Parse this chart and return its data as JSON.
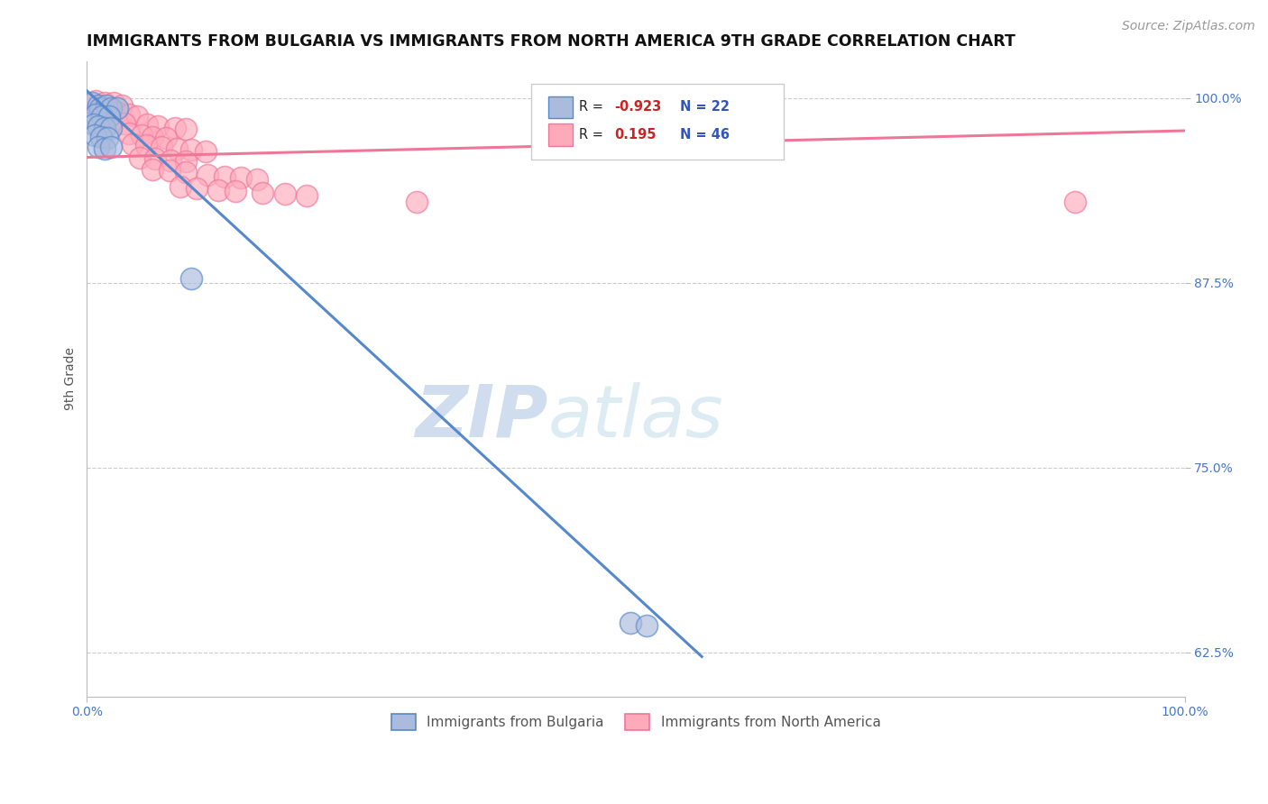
{
  "title": "IMMIGRANTS FROM BULGARIA VS IMMIGRANTS FROM NORTH AMERICA 9TH GRADE CORRELATION CHART",
  "source_text": "Source: ZipAtlas.com",
  "ylabel": "9th Grade",
  "xlim": [
    0.0,
    1.0
  ],
  "ylim": [
    0.595,
    1.025
  ],
  "ytick_vals": [
    0.625,
    0.75,
    0.875,
    1.0
  ],
  "ytick_labels": [
    "62.5%",
    "75.0%",
    "87.5%",
    "100.0%"
  ],
  "xtick_vals": [
    0.0,
    1.0
  ],
  "xtick_labels": [
    "0.0%",
    "100.0%"
  ],
  "blue_color": "#5588cc",
  "pink_color": "#ee7799",
  "blue_fill": "#aabbdd",
  "pink_fill": "#ffaabb",
  "watermark_zip": "ZIP",
  "watermark_atlas": "atlas",
  "blue_scatter": [
    [
      0.005,
      0.997
    ],
    [
      0.01,
      0.995
    ],
    [
      0.012,
      0.993
    ],
    [
      0.018,
      0.995
    ],
    [
      0.022,
      0.993
    ],
    [
      0.028,
      0.993
    ],
    [
      0.008,
      0.989
    ],
    [
      0.014,
      0.988
    ],
    [
      0.02,
      0.988
    ],
    [
      0.006,
      0.982
    ],
    [
      0.01,
      0.981
    ],
    [
      0.016,
      0.98
    ],
    [
      0.022,
      0.98
    ],
    [
      0.007,
      0.975
    ],
    [
      0.013,
      0.974
    ],
    [
      0.019,
      0.973
    ],
    [
      0.01,
      0.967
    ],
    [
      0.016,
      0.966
    ],
    [
      0.022,
      0.967
    ],
    [
      0.095,
      0.878
    ],
    [
      0.495,
      0.645
    ],
    [
      0.51,
      0.643
    ]
  ],
  "pink_scatter": [
    [
      0.008,
      0.998
    ],
    [
      0.016,
      0.997
    ],
    [
      0.024,
      0.997
    ],
    [
      0.032,
      0.995
    ],
    [
      0.01,
      0.99
    ],
    [
      0.018,
      0.989
    ],
    [
      0.028,
      0.99
    ],
    [
      0.038,
      0.989
    ],
    [
      0.046,
      0.988
    ],
    [
      0.022,
      0.984
    ],
    [
      0.034,
      0.983
    ],
    [
      0.055,
      0.982
    ],
    [
      0.065,
      0.981
    ],
    [
      0.08,
      0.98
    ],
    [
      0.09,
      0.979
    ],
    [
      0.038,
      0.976
    ],
    [
      0.05,
      0.975
    ],
    [
      0.06,
      0.974
    ],
    [
      0.072,
      0.973
    ],
    [
      0.042,
      0.969
    ],
    [
      0.054,
      0.968
    ],
    [
      0.068,
      0.967
    ],
    [
      0.082,
      0.966
    ],
    [
      0.095,
      0.965
    ],
    [
      0.108,
      0.964
    ],
    [
      0.048,
      0.96
    ],
    [
      0.062,
      0.959
    ],
    [
      0.076,
      0.958
    ],
    [
      0.09,
      0.957
    ],
    [
      0.06,
      0.952
    ],
    [
      0.075,
      0.951
    ],
    [
      0.09,
      0.95
    ],
    [
      0.11,
      0.948
    ],
    [
      0.125,
      0.947
    ],
    [
      0.14,
      0.946
    ],
    [
      0.155,
      0.945
    ],
    [
      0.085,
      0.94
    ],
    [
      0.1,
      0.939
    ],
    [
      0.12,
      0.938
    ],
    [
      0.135,
      0.937
    ],
    [
      0.16,
      0.936
    ],
    [
      0.18,
      0.935
    ],
    [
      0.2,
      0.934
    ],
    [
      0.3,
      0.93
    ],
    [
      0.9,
      0.93
    ]
  ],
  "blue_line_x": [
    0.0,
    0.56
  ],
  "blue_line_y": [
    1.005,
    0.622
  ],
  "pink_line_x": [
    0.0,
    1.0
  ],
  "pink_line_y": [
    0.96,
    0.978
  ],
  "grid_color": "#cccccc",
  "bg_color": "#ffffff",
  "title_fontsize": 12.5,
  "tick_fontsize": 10,
  "source_fontsize": 10,
  "ylabel_fontsize": 10
}
